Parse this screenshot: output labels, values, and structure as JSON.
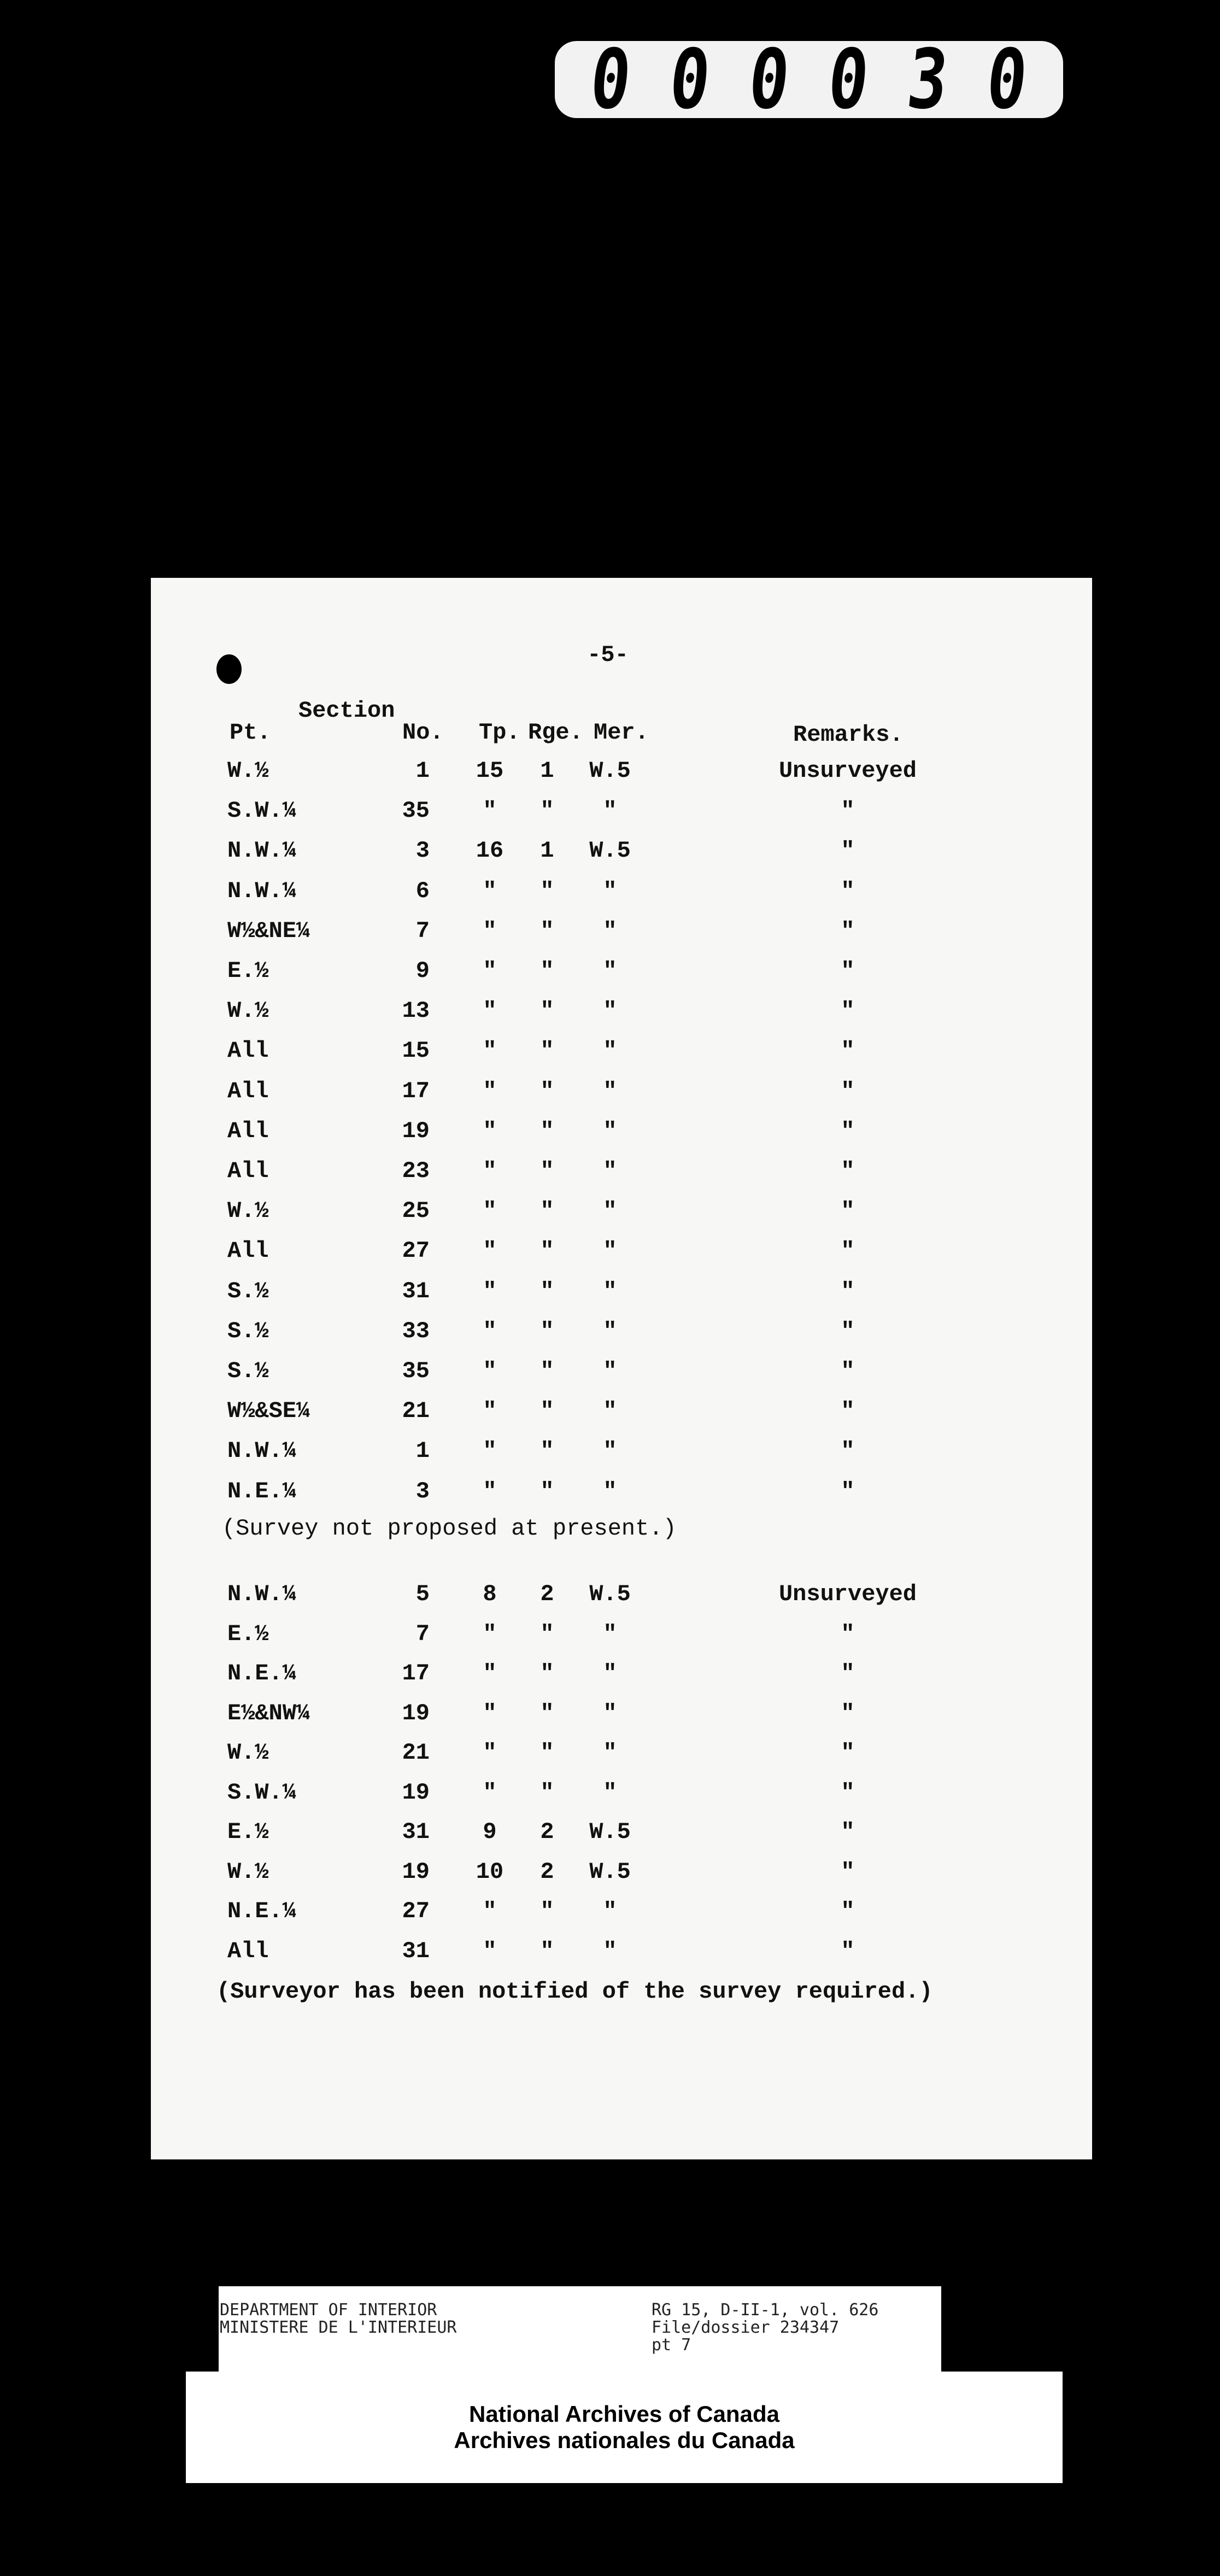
{
  "frame_number": "000030",
  "page_number": "-5-",
  "header": {
    "section": "Section",
    "pt": "Pt.",
    "no": "No.",
    "tp": "Tp.",
    "rge": "Rge.",
    "mer": "Mer.",
    "remarks": "Remarks."
  },
  "block1": [
    {
      "pt": "W.½",
      "no": "1",
      "tp": "15",
      "rge": "1",
      "mer": "W.5",
      "remarks": "Unsurveyed"
    },
    {
      "pt": "S.W.¼",
      "no": "35",
      "tp": "\"",
      "rge": "\"",
      "mer": "\"",
      "remarks": "\""
    },
    {
      "pt": "N.W.¼",
      "no": "3",
      "tp": "16",
      "rge": "1",
      "mer": "W.5",
      "remarks": "\""
    },
    {
      "pt": "N.W.¼",
      "no": "6",
      "tp": "\"",
      "rge": "\"",
      "mer": "\"",
      "remarks": "\""
    },
    {
      "pt": "W½&NE¼",
      "no": "7",
      "tp": "\"",
      "rge": "\"",
      "mer": "\"",
      "remarks": "\""
    },
    {
      "pt": "E.½",
      "no": "9",
      "tp": "\"",
      "rge": "\"",
      "mer": "\"",
      "remarks": "\""
    },
    {
      "pt": "W.½",
      "no": "13",
      "tp": "\"",
      "rge": "\"",
      "mer": "\"",
      "remarks": "\""
    },
    {
      "pt": "All",
      "no": "15",
      "tp": "\"",
      "rge": "\"",
      "mer": "\"",
      "remarks": "\""
    },
    {
      "pt": "All",
      "no": "17",
      "tp": "\"",
      "rge": "\"",
      "mer": "\"",
      "remarks": "\""
    },
    {
      "pt": "All",
      "no": "19",
      "tp": "\"",
      "rge": "\"",
      "mer": "\"",
      "remarks": "\""
    },
    {
      "pt": "All",
      "no": "23",
      "tp": "\"",
      "rge": "\"",
      "mer": "\"",
      "remarks": "\""
    },
    {
      "pt": "W.½",
      "no": "25",
      "tp": "\"",
      "rge": "\"",
      "mer": "\"",
      "remarks": "\""
    },
    {
      "pt": "All",
      "no": "27",
      "tp": "\"",
      "rge": "\"",
      "mer": "\"",
      "remarks": "\""
    },
    {
      "pt": "S.½",
      "no": "31",
      "tp": "\"",
      "rge": "\"",
      "mer": "\"",
      "remarks": "\""
    },
    {
      "pt": "S.½",
      "no": "33",
      "tp": "\"",
      "rge": "\"",
      "mer": "\"",
      "remarks": "\""
    },
    {
      "pt": "S.½",
      "no": "35",
      "tp": "\"",
      "rge": "\"",
      "mer": "\"",
      "remarks": "\""
    },
    {
      "pt": "W½&SE¼",
      "no": "21",
      "tp": "\"",
      "rge": "\"",
      "mer": "\"",
      "remarks": "\""
    },
    {
      "pt": "N.W.¼",
      "no": "1",
      "tp": "\"",
      "rge": "\"",
      "mer": "\"",
      "remarks": "\""
    },
    {
      "pt": "N.E.¼",
      "no": "3",
      "tp": "\"",
      "rge": "\"",
      "mer": "\"",
      "remarks": "\""
    }
  ],
  "note1": "(Survey not proposed at present.)",
  "block2": [
    {
      "pt": "N.W.¼",
      "no": "5",
      "tp": "8",
      "rge": "2",
      "mer": "W.5",
      "remarks": "Unsurveyed"
    },
    {
      "pt": "E.½",
      "no": "7",
      "tp": "\"",
      "rge": "\"",
      "mer": "\"",
      "remarks": "\""
    },
    {
      "pt": "N.E.¼",
      "no": "17",
      "tp": "\"",
      "rge": "\"",
      "mer": "\"",
      "remarks": "\""
    },
    {
      "pt": "E½&NW¼",
      "no": "19",
      "tp": "\"",
      "rge": "\"",
      "mer": "\"",
      "remarks": "\""
    },
    {
      "pt": "W.½",
      "no": "21",
      "tp": "\"",
      "rge": "\"",
      "mer": "\"",
      "remarks": "\""
    },
    {
      "pt": "S.W.¼",
      "no": "19",
      "tp": "\"",
      "rge": "\"",
      "mer": "\"",
      "remarks": "\""
    },
    {
      "pt": "E.½",
      "no": "31",
      "tp": "9",
      "rge": "2",
      "mer": "W.5",
      "remarks": "\""
    },
    {
      "pt": "W.½",
      "no": "19",
      "tp": "10",
      "rge": "2",
      "mer": "W.5",
      "remarks": "\""
    },
    {
      "pt": "N.E.¼",
      "no": "27",
      "tp": "\"",
      "rge": "\"",
      "mer": "\"",
      "remarks": "\""
    },
    {
      "pt": "All",
      "no": "31",
      "tp": "\"",
      "rge": "\"",
      "mer": "\"",
      "remarks": "\""
    }
  ],
  "note2": "(Surveyor has been notified of the survey required.)",
  "archive_label": {
    "dept_en": "DEPARTMENT OF INTERIOR",
    "dept_fr": "MINISTERE DE L'INTERIEUR",
    "ref": "RG 15, D-II-1, vol. 626",
    "file": "File/dossier 234347",
    "part": "pt 7"
  },
  "archives_name": {
    "en": "National Archives of Canada",
    "fr": "Archives nationales du Canada"
  }
}
